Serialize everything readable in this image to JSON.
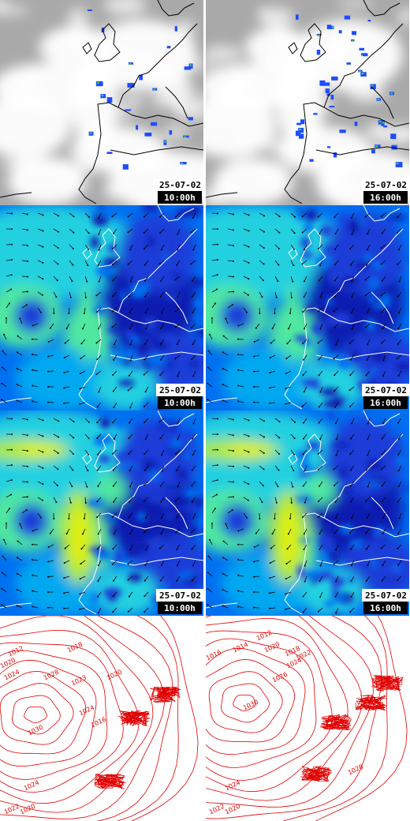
{
  "panels": [
    {
      "kind": "satellite",
      "date": "25-07-02",
      "time": "10:00h"
    },
    {
      "kind": "satellite",
      "date": "25-07-02",
      "time": "16:00h"
    },
    {
      "kind": "wind",
      "date": "25-07-02",
      "time": "10:00h"
    },
    {
      "kind": "wind",
      "date": "25-07-02",
      "time": "16:00h"
    },
    {
      "kind": "wind",
      "date": "25-07-02",
      "time": "10:00h"
    },
    {
      "kind": "wind",
      "date": "25-07-02",
      "time": "16:00h"
    },
    {
      "kind": "pressure",
      "labels": [
        "1012",
        "1018",
        "1020",
        "1024",
        "1023",
        "1028",
        "1020",
        "1030",
        "1024",
        "1016",
        "1024",
        "1022",
        "1020"
      ]
    },
    {
      "kind": "pressure",
      "labels": [
        "1012",
        "1014",
        "1016",
        "1018",
        "1020",
        "1022",
        "1024",
        "1026",
        "1030",
        "1028",
        "1024",
        "1022",
        "1020"
      ]
    }
  ]
}
